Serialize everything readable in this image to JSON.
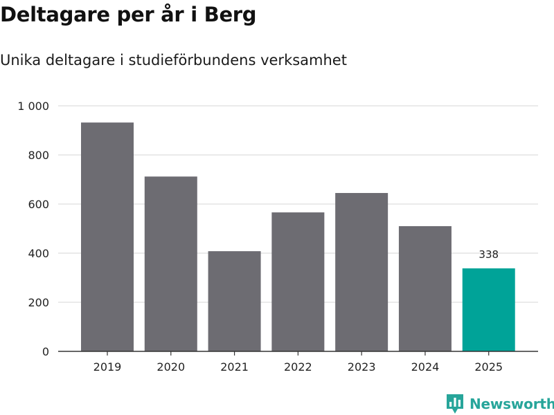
{
  "header": {
    "title": "Deltagare per år i Berg",
    "subtitle": "Unika deltagare i studieförbundens verksamhet"
  },
  "branding": {
    "name": "Newsworthy",
    "logo_icon": "bar-chart-pin-icon",
    "color": "#27a59a"
  },
  "colors": {
    "bar": "#6d6c72",
    "highlight": "#00a398",
    "grid": "#dddddd",
    "axis": "#333333"
  },
  "chart_data": {
    "type": "bar",
    "title": "Deltagare per år i Berg",
    "subtitle": "Unika deltagare i studieförbundens verksamhet",
    "xlabel": "",
    "ylabel": "",
    "categories": [
      "2019",
      "2020",
      "2021",
      "2022",
      "2023",
      "2024",
      "2025"
    ],
    "values": [
      932,
      712,
      408,
      566,
      645,
      510,
      338
    ],
    "highlight_index": 6,
    "data_labels": [
      {
        "index": 6,
        "text": "338"
      }
    ],
    "ylim": [
      0,
      1000
    ],
    "yticks": [
      0,
      200,
      400,
      600,
      800,
      1000
    ],
    "ytick_labels": [
      "0",
      "200",
      "400",
      "600",
      "800",
      "1 000"
    ],
    "grid": true,
    "legend": "none"
  }
}
